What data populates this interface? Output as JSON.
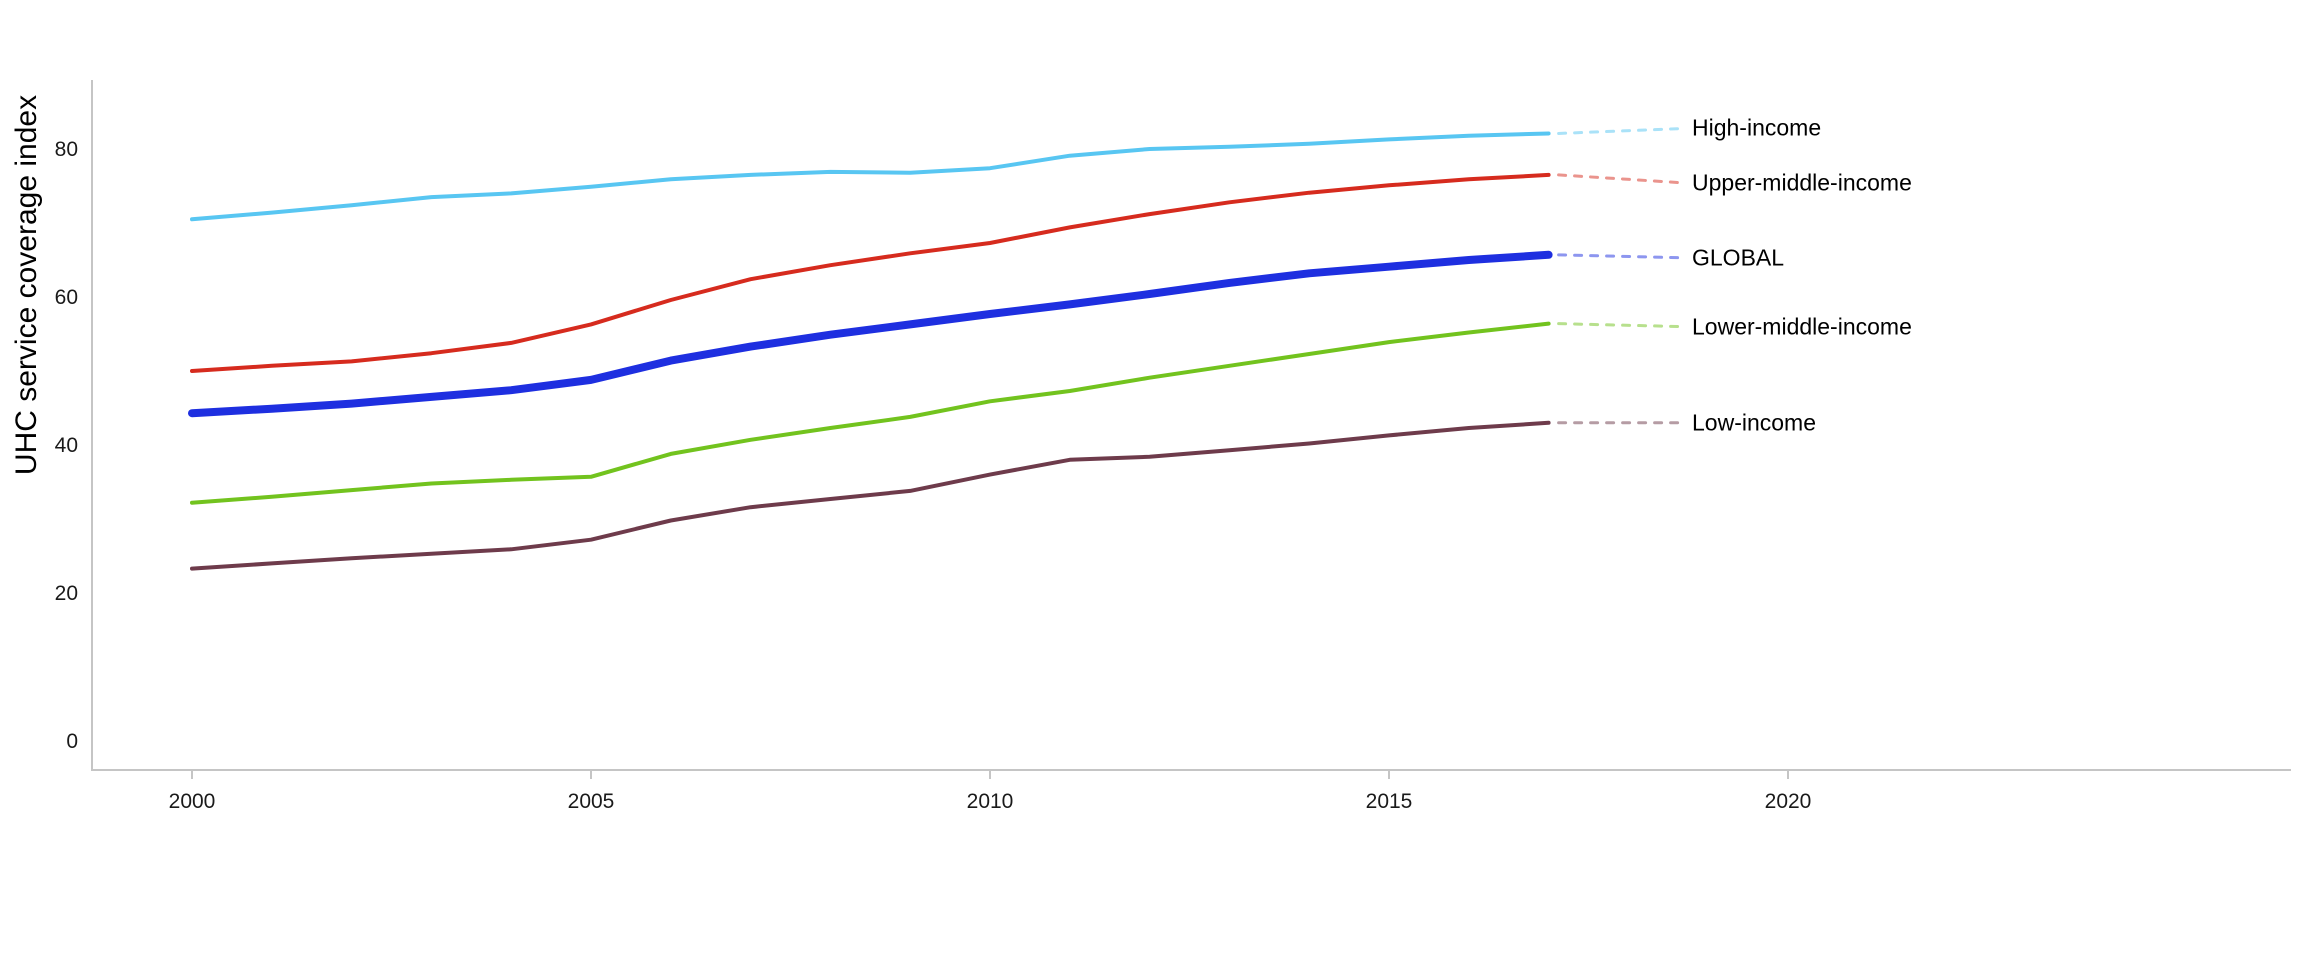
{
  "chart_data": {
    "type": "line",
    "title": "",
    "xlabel": "",
    "ylabel": "UHC service coverage index",
    "x": [
      2000,
      2001,
      2002,
      2003,
      2004,
      2005,
      2006,
      2007,
      2008,
      2009,
      2010,
      2011,
      2012,
      2013,
      2014,
      2015,
      2016,
      2017
    ],
    "series": [
      {
        "name": "High-income",
        "color": "#58C6F2",
        "line_width": 4,
        "values": [
          70.5,
          71.4,
          72.4,
          73.5,
          74.0,
          74.9,
          75.9,
          76.5,
          76.9,
          76.8,
          77.4,
          79.1,
          80.0,
          80.3,
          80.7,
          81.3,
          81.8,
          82.1
        ]
      },
      {
        "name": "Upper-middle-income",
        "color": "#D62B1E",
        "line_width": 4,
        "values": [
          50.0,
          50.7,
          51.3,
          52.4,
          53.8,
          56.3,
          59.6,
          62.4,
          64.3,
          65.9,
          67.3,
          69.4,
          71.2,
          72.8,
          74.1,
          75.1,
          75.9,
          76.5
        ]
      },
      {
        "name": "GLOBAL",
        "color": "#1E2FE0",
        "line_width": 8,
        "values": [
          44.3,
          44.9,
          45.6,
          46.5,
          47.4,
          48.8,
          51.4,
          53.3,
          54.9,
          56.3,
          57.7,
          59.0,
          60.4,
          61.9,
          63.2,
          64.1,
          65.0,
          65.7
        ]
      },
      {
        "name": "Lower-middle-income",
        "color": "#72C31E",
        "line_width": 4,
        "values": [
          32.2,
          33.0,
          33.9,
          34.8,
          35.3,
          35.7,
          38.8,
          40.7,
          42.3,
          43.8,
          45.9,
          47.3,
          49.1,
          50.7,
          52.3,
          53.9,
          55.2,
          56.4
        ]
      },
      {
        "name": "Low-income",
        "color": "#6E3B4B",
        "line_width": 4,
        "values": [
          23.3,
          24.0,
          24.7,
          25.3,
          25.9,
          27.2,
          29.8,
          31.6,
          32.7,
          33.8,
          36.0,
          38.0,
          38.4,
          39.3,
          40.2,
          41.3,
          42.3,
          43.0
        ]
      }
    ],
    "x_ticks": [
      2000,
      2005,
      2010,
      2015,
      2020
    ],
    "y_ticks": [
      0,
      20,
      40,
      60,
      80
    ],
    "xlim": [
      1998.7,
      2026.3
    ],
    "ylim": [
      0,
      89.3
    ],
    "grid": false,
    "legend_position": "end-of-line-labels"
  },
  "colors": {
    "axis": "#C5C5C5",
    "tick_text": "#1A1A1A",
    "background": "#FFFFFF"
  }
}
